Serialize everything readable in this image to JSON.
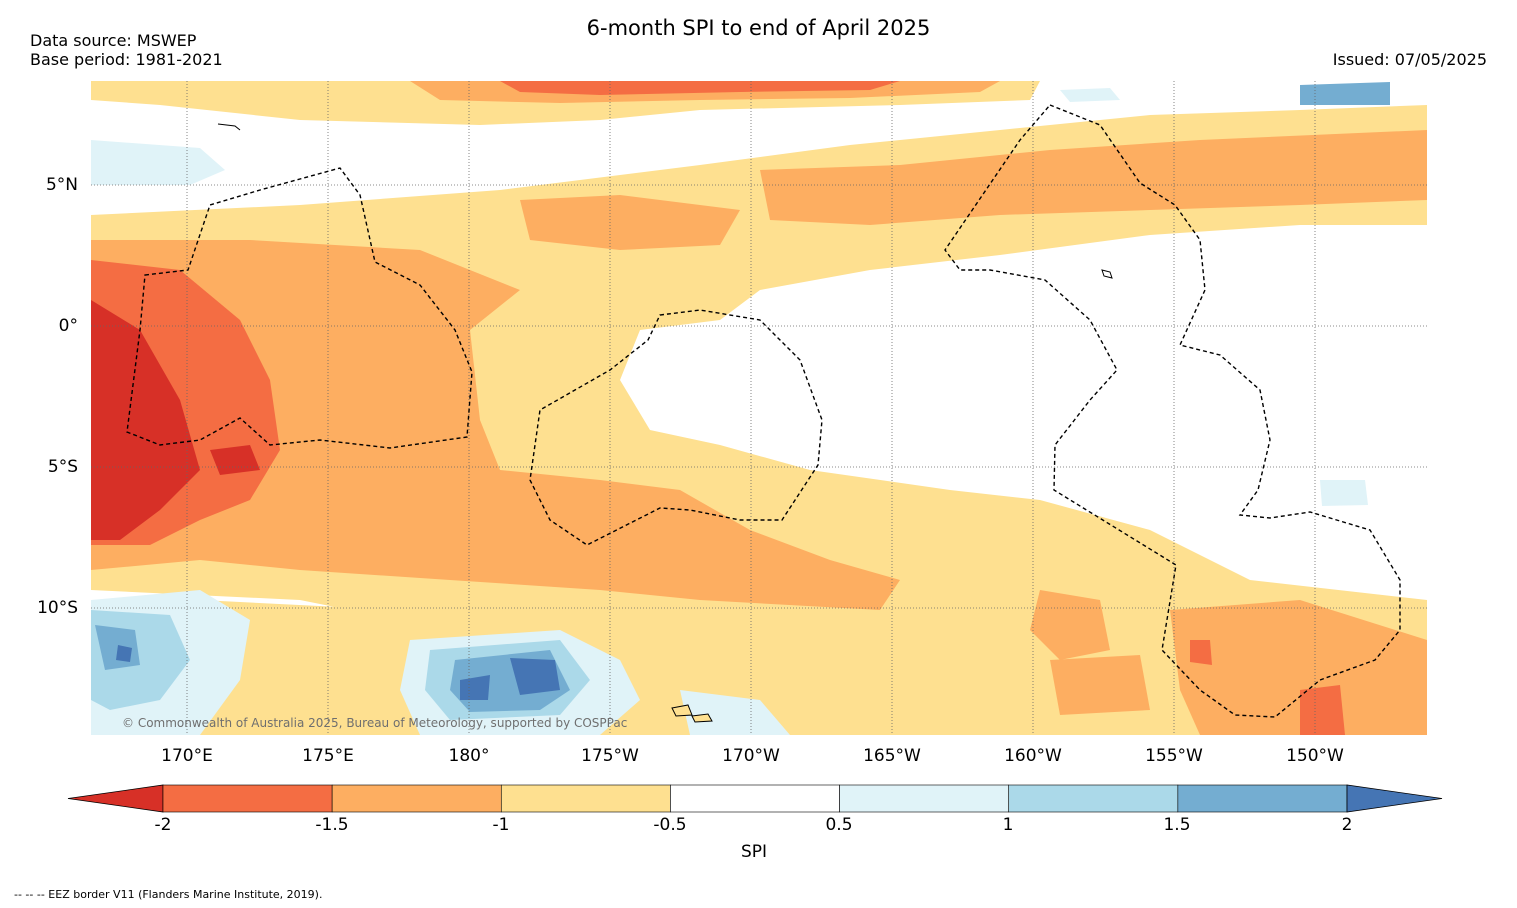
{
  "header": {
    "title": "6-month SPI to end of April 2025",
    "data_source": "Data source: MSWEP",
    "base_period": "Base period: 1981-2021",
    "issued": "Issued: 07/05/2025"
  },
  "map": {
    "lat_labels": [
      "5°N",
      "0°",
      "5°S",
      "10°S"
    ],
    "lon_labels": [
      "170°E",
      "175°E",
      "180°",
      "175°W",
      "170°W",
      "165°W",
      "160°W",
      "155°W",
      "150°W"
    ],
    "copyright": "© Commonwealth of Australia 2025, Bureau of Meteorology, supported by COSPPac",
    "graticule": "dotted",
    "eez_border": "dashed"
  },
  "colorbar": {
    "label": "SPI",
    "ticks": [
      "-2",
      "-1.5",
      "-1",
      "-0.5",
      "0.5",
      "1",
      "1.5",
      "2"
    ],
    "colors": [
      "#d73027",
      "#f46d43",
      "#fdae61",
      "#fee090",
      "#ffffff",
      "#e0f3f8",
      "#abd9e9",
      "#74add1",
      "#4575b4"
    ]
  },
  "footnote": "--  --  -- EEZ border V11 (Flanders Marine Institute, 2019)."
}
